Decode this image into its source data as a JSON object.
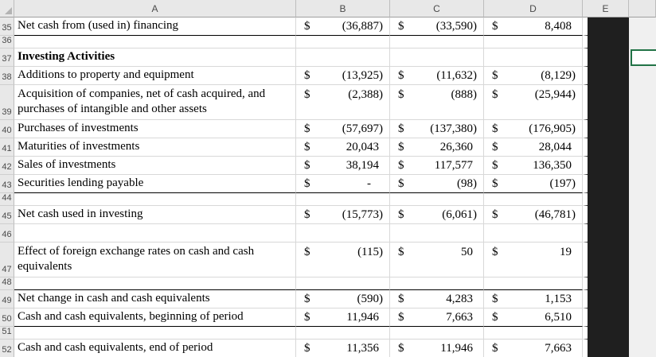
{
  "currency_symbol": "$",
  "colors": {
    "header_bg": "#e8e8e8",
    "gridline": "#d8d8d8",
    "rule_line": "#000000",
    "dark_band": "#1f1f1f",
    "selection_green": "#217346",
    "outside_bg": "#f0f0f0"
  },
  "column_headers": [
    "A",
    "B",
    "C",
    "D",
    "E",
    ""
  ],
  "sheet": {
    "rows": [
      {
        "num": "35",
        "label": "Net cash from (used in) financing",
        "values": [
          "(36,887)",
          "(33,590)",
          "8,408"
        ],
        "dollars": true,
        "rule": true
      },
      {
        "num": "36",
        "size": "short"
      },
      {
        "num": "37",
        "label": "Investing Activities",
        "bold": true,
        "selected_f": true
      },
      {
        "num": "38",
        "label": "Additions to property and equipment",
        "values": [
          "(13,925)",
          "(11,632)",
          "(8,129)"
        ],
        "dollars": true
      },
      {
        "num": "39",
        "label": "Acquisition of companies, net of cash acquired, and purchases of intangible and other assets",
        "values": [
          "(2,388)",
          "(888)",
          "(25,944)"
        ],
        "dollars": true,
        "size": "tall"
      },
      {
        "num": "40",
        "label": "Purchases of investments",
        "values": [
          "(57,697)",
          "(137,380)",
          "(176,905)"
        ],
        "dollars": true
      },
      {
        "num": "41",
        "label": "Maturities of investments",
        "values": [
          "20,043",
          "26,360",
          "28,044"
        ],
        "dollars": true
      },
      {
        "num": "42",
        "label": "Sales of investments",
        "values": [
          "38,194",
          "117,577",
          "136,350"
        ],
        "dollars": true
      },
      {
        "num": "43",
        "label": "Securities lending payable",
        "values": [
          "-",
          "(98)",
          "(197)"
        ],
        "dollars": true,
        "rule": true
      },
      {
        "num": "44",
        "size": "short"
      },
      {
        "num": "45",
        "label": "Net cash used in investing",
        "values": [
          "(15,773)",
          "(6,061)",
          "(46,781)"
        ],
        "dollars": true
      },
      {
        "num": "46"
      },
      {
        "num": "47",
        "label": "Effect of foreign exchange rates on cash and cash equivalents",
        "values": [
          "(115)",
          "50",
          "19"
        ],
        "dollars": true,
        "size": "tall"
      },
      {
        "num": "48",
        "size": "short",
        "rule": true
      },
      {
        "num": "49",
        "label": "Net change in cash and cash equivalents",
        "values": [
          "(590)",
          "4,283",
          "1,153"
        ],
        "dollars": true
      },
      {
        "num": "50",
        "label": "Cash and cash equivalents, beginning of period",
        "values": [
          "11,946",
          "7,663",
          "6,510"
        ],
        "dollars": true,
        "rule": true
      },
      {
        "num": "51",
        "size": "short"
      },
      {
        "num": "52",
        "label": "Cash and cash equivalents, end of period",
        "values": [
          "11,356",
          "11,946",
          "7,663"
        ],
        "dollars": true,
        "rule": true
      }
    ]
  }
}
